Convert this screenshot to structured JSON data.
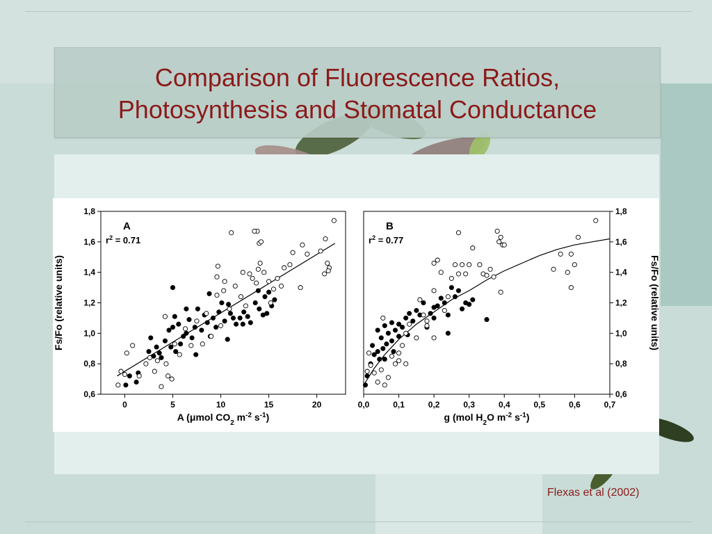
{
  "slide": {
    "title_line1": "Comparison of Fluorescence Ratios,",
    "title_line2": "Photosynthesis and Stomatal Conductance",
    "credit": "Flexas et al (2002)"
  },
  "colors": {
    "title": "#8b1a1a",
    "background": "#c9dcd7",
    "panel": "#e2efec",
    "figure": "#ffffff",
    "ink": "#000000"
  },
  "chart_data": [
    {
      "type": "scatter",
      "panel_label": "A",
      "stat_label": "r",
      "stat_exp": "2",
      "stat_value": " = 0.71",
      "xlabel_parts": [
        "A (",
        "μ",
        "mol CO",
        "2",
        " m",
        "-2",
        " s",
        "-1",
        ")"
      ],
      "ylabel": "Fs/Fo (relative units)",
      "y_axis_side": "left",
      "xlim": [
        -2.5,
        23
      ],
      "ylim": [
        0.6,
        1.8
      ],
      "x_ticks": [
        0,
        5,
        10,
        15,
        20
      ],
      "x_tick_labels": [
        "0",
        "5",
        "10",
        "15",
        "20"
      ],
      "y_ticks": [
        0.6,
        0.8,
        1.0,
        1.2,
        1.4,
        1.6,
        1.8
      ],
      "y_tick_labels": [
        "0,6",
        "0,8",
        "1,0",
        "1,2",
        "1,4",
        "1,6",
        "1,8"
      ],
      "grid": false,
      "fit": {
        "type": "linear",
        "x": [
          -0.8,
          21.9
        ],
        "y": [
          0.72,
          1.59
        ]
      },
      "series": [
        {
          "marker": "filled",
          "points": [
            [
              0.1,
              0.66
            ],
            [
              0.5,
              0.72
            ],
            [
              1.2,
              0.68
            ],
            [
              1.4,
              0.74
            ],
            [
              2.5,
              0.88
            ],
            [
              2.7,
              0.97
            ],
            [
              3.0,
              0.85
            ],
            [
              3.3,
              0.91
            ],
            [
              3.6,
              0.87
            ],
            [
              3.8,
              0.84
            ],
            [
              4.2,
              0.95
            ],
            [
              4.6,
              1.02
            ],
            [
              4.8,
              0.91
            ],
            [
              5.0,
              1.04
            ],
            [
              5.2,
              1.11
            ],
            [
              5.3,
              0.88
            ],
            [
              5.6,
              1.06
            ],
            [
              5.8,
              0.93
            ],
            [
              6.1,
              0.98
            ],
            [
              6.4,
              1.0
            ],
            [
              6.7,
              1.09
            ],
            [
              7.0,
              0.97
            ],
            [
              7.3,
              1.04
            ],
            [
              7.6,
              1.16
            ],
            [
              7.4,
              0.86
            ],
            [
              8.0,
              1.02
            ],
            [
              8.3,
              1.12
            ],
            [
              8.6,
              1.07
            ],
            [
              8.9,
              0.98
            ],
            [
              9.2,
              1.1
            ],
            [
              9.5,
              1.04
            ],
            [
              9.8,
              1.14
            ],
            [
              10.1,
              1.2
            ],
            [
              10.4,
              1.08
            ],
            [
              10.7,
              0.96
            ],
            [
              11.0,
              1.13
            ],
            [
              11.3,
              1.1
            ],
            [
              11.6,
              1.06
            ],
            [
              12.0,
              1.1
            ],
            [
              12.4,
              1.14
            ],
            [
              12.8,
              1.11
            ],
            [
              13.1,
              1.07
            ],
            [
              13.6,
              1.2
            ],
            [
              14.0,
              1.16
            ],
            [
              14.4,
              1.12
            ],
            [
              14.6,
              1.24
            ],
            [
              15.0,
              1.27
            ],
            [
              15.3,
              1.18
            ],
            [
              15.6,
              1.22
            ],
            [
              5.0,
              1.3
            ],
            [
              6.4,
              1.16
            ],
            [
              8.8,
              1.26
            ],
            [
              10.8,
              1.19
            ],
            [
              13.9,
              1.28
            ],
            [
              14.8,
              1.13
            ],
            [
              12.3,
              1.06
            ]
          ]
        },
        {
          "marker": "open",
          "points": [
            [
              -0.7,
              0.66
            ],
            [
              -0.4,
              0.75
            ],
            [
              0.0,
              0.73
            ],
            [
              0.2,
              0.87
            ],
            [
              0.8,
              0.92
            ],
            [
              1.5,
              0.72
            ],
            [
              2.2,
              0.8
            ],
            [
              2.6,
              0.84
            ],
            [
              3.1,
              0.75
            ],
            [
              3.4,
              0.82
            ],
            [
              3.8,
              0.65
            ],
            [
              4.3,
              0.8
            ],
            [
              4.5,
              0.72
            ],
            [
              4.9,
              0.7
            ],
            [
              4.2,
              1.11
            ],
            [
              5.2,
              0.93
            ],
            [
              5.7,
              0.86
            ],
            [
              6.3,
              1.03
            ],
            [
              6.9,
              0.92
            ],
            [
              7.5,
              1.08
            ],
            [
              8.1,
              0.93
            ],
            [
              8.5,
              1.13
            ],
            [
              9.0,
              0.98
            ],
            [
              9.6,
              1.25
            ],
            [
              10.0,
              1.05
            ],
            [
              10.3,
              1.28
            ],
            [
              10.9,
              1.16
            ],
            [
              11.5,
              1.31
            ],
            [
              12.1,
              1.24
            ],
            [
              12.6,
              1.18
            ],
            [
              13.0,
              1.39
            ],
            [
              13.3,
              1.36
            ],
            [
              13.7,
              1.33
            ],
            [
              13.9,
              1.42
            ],
            [
              14.1,
              1.46
            ],
            [
              14.5,
              1.4
            ],
            [
              15.0,
              1.34
            ],
            [
              15.2,
              1.2
            ],
            [
              15.5,
              1.29
            ],
            [
              15.9,
              1.36
            ],
            [
              16.3,
              1.31
            ],
            [
              16.6,
              1.43
            ],
            [
              17.2,
              1.45
            ],
            [
              17.5,
              1.53
            ],
            [
              18.5,
              1.58
            ],
            [
              18.3,
              1.3
            ],
            [
              19.0,
              1.52
            ],
            [
              20.4,
              1.54
            ],
            [
              20.8,
              1.39
            ],
            [
              20.9,
              1.62
            ],
            [
              21.1,
              1.46
            ],
            [
              21.3,
              1.43
            ],
            [
              21.2,
              1.41
            ],
            [
              21.8,
              1.74
            ],
            [
              9.6,
              1.37
            ],
            [
              10.4,
              1.34
            ],
            [
              11.1,
              1.66
            ],
            [
              13.8,
              1.67
            ],
            [
              14.0,
              1.59
            ],
            [
              14.2,
              1.6
            ],
            [
              13.5,
              1.67
            ],
            [
              12.3,
              1.4
            ],
            [
              9.7,
              1.44
            ]
          ]
        }
      ]
    },
    {
      "type": "scatter",
      "panel_label": "B",
      "stat_label": "r",
      "stat_exp": "2",
      "stat_value": " = 0.77",
      "xlabel_parts": [
        "g (mol H",
        "2",
        "O m",
        "-2",
        " s",
        "-1",
        ")"
      ],
      "ylabel": "Fs/Fo (relative units)",
      "y_axis_side": "right",
      "xlim": [
        0.0,
        0.7
      ],
      "ylim": [
        0.6,
        1.8
      ],
      "x_ticks": [
        0.0,
        0.1,
        0.2,
        0.3,
        0.4,
        0.5,
        0.6,
        0.7
      ],
      "x_tick_labels": [
        "0,0",
        "0,1",
        "0,2",
        "0,3",
        "0,4",
        "0,5",
        "0,6",
        "0,7"
      ],
      "y_ticks": [
        0.6,
        0.8,
        1.0,
        1.2,
        1.4,
        1.6,
        1.8
      ],
      "y_tick_labels": [
        "0,6",
        "0,8",
        "1,0",
        "1,2",
        "1,4",
        "1,6",
        "1,8"
      ],
      "grid": false,
      "fit": {
        "type": "curve",
        "x": [
          0.0,
          0.03,
          0.06,
          0.1,
          0.15,
          0.2,
          0.25,
          0.3,
          0.35,
          0.4,
          0.45,
          0.5,
          0.55,
          0.6,
          0.65,
          0.7
        ],
        "y": [
          0.66,
          0.77,
          0.86,
          0.96,
          1.06,
          1.14,
          1.22,
          1.28,
          1.35,
          1.41,
          1.46,
          1.51,
          1.55,
          1.58,
          1.6,
          1.62
        ]
      },
      "series": [
        {
          "marker": "filled",
          "points": [
            [
              0.005,
              0.66
            ],
            [
              0.01,
              0.72
            ],
            [
              0.02,
              0.8
            ],
            [
              0.025,
              0.92
            ],
            [
              0.03,
              0.86
            ],
            [
              0.04,
              0.88
            ],
            [
              0.045,
              0.83
            ],
            [
              0.05,
              0.97
            ],
            [
              0.055,
              0.9
            ],
            [
              0.06,
              0.83
            ],
            [
              0.065,
              0.93
            ],
            [
              0.07,
              1.0
            ],
            [
              0.08,
              0.95
            ],
            [
              0.085,
              0.88
            ],
            [
              0.09,
              1.02
            ],
            [
              0.1,
              0.98
            ],
            [
              0.1,
              1.06
            ],
            [
              0.11,
              1.04
            ],
            [
              0.12,
              1.1
            ],
            [
              0.125,
              0.99
            ],
            [
              0.13,
              1.13
            ],
            [
              0.14,
              1.08
            ],
            [
              0.15,
              1.15
            ],
            [
              0.16,
              1.12
            ],
            [
              0.17,
              1.2
            ],
            [
              0.18,
              1.04
            ],
            [
              0.19,
              1.13
            ],
            [
              0.2,
              1.17
            ],
            [
              0.2,
              1.1
            ],
            [
              0.21,
              1.18
            ],
            [
              0.22,
              1.23
            ],
            [
              0.23,
              1.2
            ],
            [
              0.24,
              1.12
            ],
            [
              0.25,
              1.3
            ],
            [
              0.26,
              1.24
            ],
            [
              0.27,
              1.28
            ],
            [
              0.28,
              1.16
            ],
            [
              0.29,
              1.2
            ],
            [
              0.3,
              1.19
            ],
            [
              0.31,
              1.22
            ],
            [
              0.35,
              1.09
            ],
            [
              0.24,
              1.0
            ],
            [
              0.06,
              1.05
            ],
            [
              0.08,
              1.07
            ],
            [
              0.04,
              1.02
            ]
          ]
        },
        {
          "marker": "open",
          "points": [
            [
              0.01,
              0.75
            ],
            [
              0.015,
              0.87
            ],
            [
              0.02,
              0.79
            ],
            [
              0.03,
              0.74
            ],
            [
              0.04,
              0.68
            ],
            [
              0.05,
              0.76
            ],
            [
              0.06,
              0.66
            ],
            [
              0.07,
              0.71
            ],
            [
              0.08,
              0.85
            ],
            [
              0.09,
              0.8
            ],
            [
              0.1,
              0.87
            ],
            [
              0.11,
              0.92
            ],
            [
              0.12,
              1.0
            ],
            [
              0.13,
              1.06
            ],
            [
              0.15,
              0.97
            ],
            [
              0.16,
              1.22
            ],
            [
              0.17,
              1.12
            ],
            [
              0.18,
              1.05
            ],
            [
              0.2,
              1.28
            ],
            [
              0.2,
              1.46
            ],
            [
              0.21,
              1.48
            ],
            [
              0.22,
              1.4
            ],
            [
              0.23,
              1.15
            ],
            [
              0.24,
              1.24
            ],
            [
              0.25,
              1.36
            ],
            [
              0.26,
              1.45
            ],
            [
              0.27,
              1.39
            ],
            [
              0.28,
              1.45
            ],
            [
              0.29,
              1.39
            ],
            [
              0.3,
              1.45
            ],
            [
              0.33,
              1.45
            ],
            [
              0.34,
              1.39
            ],
            [
              0.35,
              1.38
            ],
            [
              0.36,
              1.42
            ],
            [
              0.37,
              1.37
            ],
            [
              0.38,
              1.67
            ],
            [
              0.385,
              1.6
            ],
            [
              0.39,
              1.63
            ],
            [
              0.395,
              1.58
            ],
            [
              0.4,
              1.58
            ],
            [
              0.39,
              1.27
            ],
            [
              0.27,
              1.66
            ],
            [
              0.31,
              1.56
            ],
            [
              0.54,
              1.42
            ],
            [
              0.56,
              1.52
            ],
            [
              0.58,
              1.4
            ],
            [
              0.59,
              1.3
            ],
            [
              0.59,
              1.52
            ],
            [
              0.6,
              1.45
            ],
            [
              0.61,
              1.63
            ],
            [
              0.66,
              1.74
            ],
            [
              0.055,
              1.1
            ],
            [
              0.1,
              0.82
            ],
            [
              0.12,
              0.8
            ],
            [
              0.2,
              0.97
            ],
            [
              0.18,
              1.08
            ]
          ]
        }
      ]
    }
  ]
}
